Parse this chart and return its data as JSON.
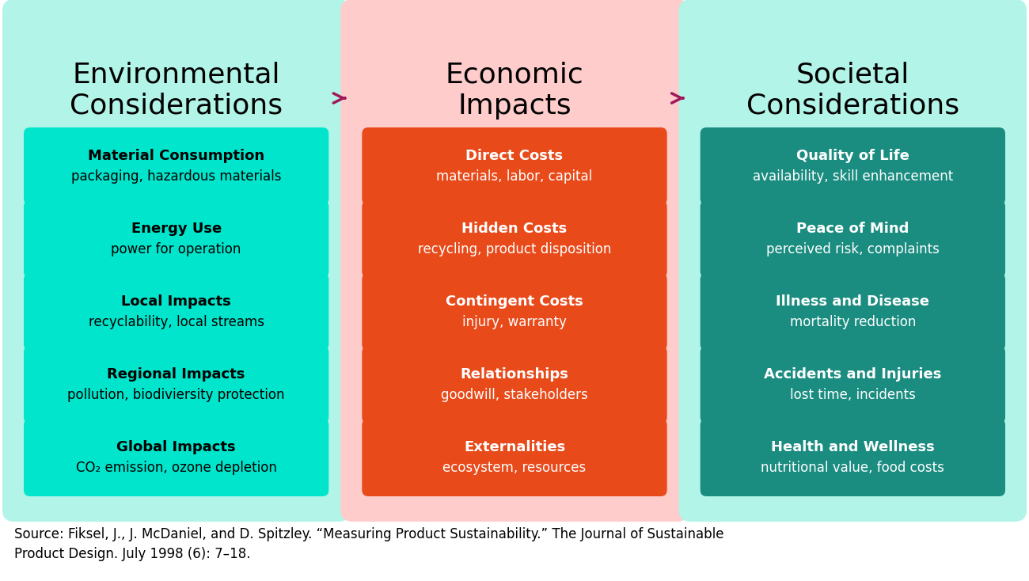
{
  "title_left": "Environmental\nConsiderations",
  "title_center": "Economic\nImpacts",
  "title_right": "Societal\nConsiderations",
  "bg_left": "#B2F5E8",
  "bg_center": "#FFCCCC",
  "bg_right": "#B2F5E8",
  "card_left_color": "#00E5CC",
  "card_center_color": "#E84A1A",
  "card_right_color": "#1A8C80",
  "left_items": [
    {
      "title": "Material Consumption",
      "sub": "packaging, hazardous materials"
    },
    {
      "title": "Energy Use",
      "sub": "power for operation"
    },
    {
      "title": "Local Impacts",
      "sub": "recyclability, local streams"
    },
    {
      "title": "Regional Impacts",
      "sub": "pollution, biodiviersity protection"
    },
    {
      "title": "Global Impacts",
      "sub": "CO₂ emission, ozone depletion"
    }
  ],
  "center_items": [
    {
      "title": "Direct Costs",
      "sub": "materials, labor, capital"
    },
    {
      "title": "Hidden Costs",
      "sub": "recycling, product disposition"
    },
    {
      "title": "Contingent Costs",
      "sub": "injury, warranty"
    },
    {
      "title": "Relationships",
      "sub": "goodwill, stakeholders"
    },
    {
      "title": "Externalities",
      "sub": "ecosystem, resources"
    }
  ],
  "right_items": [
    {
      "title": "Quality of Life",
      "sub": "availability, skill enhancement"
    },
    {
      "title": "Peace of Mind",
      "sub": "perceived risk, complaints"
    },
    {
      "title": "Illness and Disease",
      "sub": "mortality reduction"
    },
    {
      "title": "Accidents and Injuries",
      "sub": "lost time, incidents"
    },
    {
      "title": "Health and Wellness",
      "sub": "nutritional value, food costs"
    }
  ],
  "source_text": "Source: Fiksel, J., J. McDaniel, and D. Spitzley. “Measuring Product Sustainability.” The Journal of Sustainable\nProduct Design. July 1998 (6): 7–18.",
  "arrow_color": "#A0185A",
  "title_fontsize": 26,
  "card_title_fontsize": 13,
  "card_sub_fontsize": 12,
  "source_fontsize": 12,
  "fig_width": 13.0,
  "fig_height": 7.34
}
